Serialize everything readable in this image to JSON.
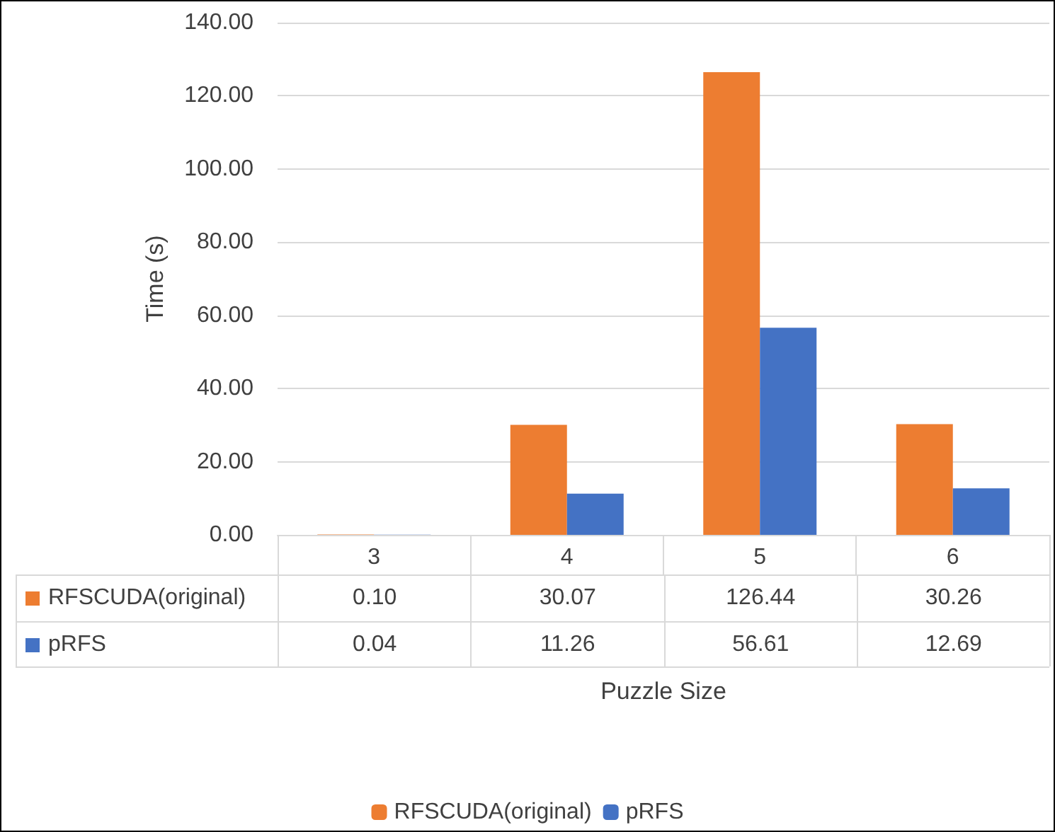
{
  "chart_data": {
    "type": "bar",
    "xlabel": "Puzzle Size",
    "ylabel": "Time (s)",
    "categories": [
      "3",
      "4",
      "5",
      "6"
    ],
    "series": [
      {
        "name": "RFSCUDA(original)",
        "color": "#ed7d31",
        "values": [
          0.1,
          30.07,
          126.44,
          30.26
        ],
        "value_labels": [
          "0.10",
          "30.07",
          "126.44",
          "30.26"
        ]
      },
      {
        "name": "pRFS",
        "color": "#4472c4",
        "values": [
          0.04,
          11.26,
          56.61,
          12.69
        ],
        "value_labels": [
          "0.04",
          "11.26",
          "56.61",
          "12.69"
        ]
      }
    ],
    "ylim": [
      0,
      140
    ],
    "yticks": [
      {
        "value": 0,
        "label": "0.00"
      },
      {
        "value": 20,
        "label": "20.00"
      },
      {
        "value": 40,
        "label": "40.00"
      },
      {
        "value": 60,
        "label": "60.00"
      },
      {
        "value": 80,
        "label": "80.00"
      },
      {
        "value": 100,
        "label": "100.00"
      },
      {
        "value": 120,
        "label": "120.00"
      },
      {
        "value": 140,
        "label": "140.00"
      }
    ],
    "grid": "y",
    "legend": "bottom"
  }
}
